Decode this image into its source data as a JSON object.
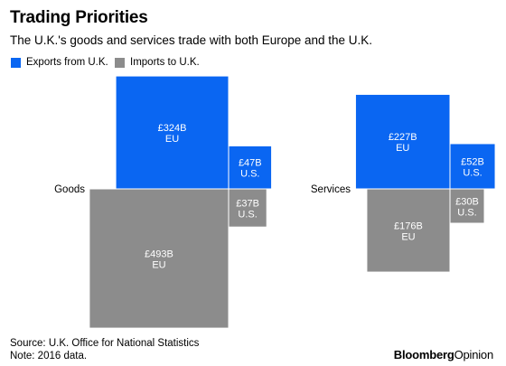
{
  "header": {
    "title": "Trading Priorities",
    "subtitle": "The U.K.'s goods and services trade with both Europe and the U.K."
  },
  "colors": {
    "exports": "#0a66f2",
    "imports": "#8c8c8c"
  },
  "chart_data": {
    "type": "area",
    "legend": [
      "Exports from U.K.",
      "Imports to U.K."
    ],
    "groups": [
      {
        "name": "Goods",
        "exports": [
          {
            "partner": "EU",
            "value": 324,
            "label": "£324B"
          },
          {
            "partner": "U.S.",
            "value": 47,
            "label": "£47B"
          }
        ],
        "imports": [
          {
            "partner": "EU",
            "value": 493,
            "label": "£493B"
          },
          {
            "partner": "U.S.",
            "value": 37,
            "label": "£37B"
          }
        ]
      },
      {
        "name": "Services",
        "exports": [
          {
            "partner": "EU",
            "value": 227,
            "label": "£227B"
          },
          {
            "partner": "U.S.",
            "value": 52,
            "label": "£52B"
          }
        ],
        "imports": [
          {
            "partner": "EU",
            "value": 176,
            "label": "£176B"
          },
          {
            "partner": "U.S.",
            "value": 30,
            "label": "£30B"
          }
        ]
      }
    ],
    "unit": "£B",
    "encoding": "square area proportional to value"
  },
  "footer": {
    "source": "Source: U.K. Office for National Statistics",
    "note": "Note: 2016 data."
  },
  "brand": {
    "part1": "Bloomberg",
    "part2": "Opinion"
  }
}
